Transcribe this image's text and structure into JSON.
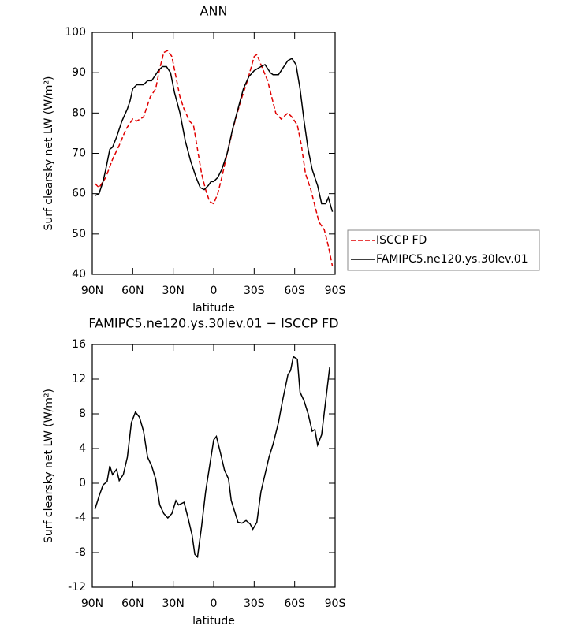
{
  "chart_data": [
    {
      "type": "line",
      "title": "ANN",
      "xlabel": "latitude",
      "ylabel": "Surf clearsky net LW (W/m²)",
      "xlim": [
        90,
        -90
      ],
      "xticks": [
        {
          "value": 90,
          "label": "90N"
        },
        {
          "value": 60,
          "label": "60N"
        },
        {
          "value": 30,
          "label": "30N"
        },
        0,
        {
          "value": -30,
          "label": "30S"
        },
        {
          "value": -60,
          "label": "60S"
        },
        {
          "value": -90,
          "label": "90S"
        }
      ],
      "ylim": [
        40,
        100
      ],
      "yticks": [
        40,
        50,
        60,
        70,
        80,
        90,
        100
      ],
      "legend": "right",
      "series": [
        {
          "name": "ISCCP FD",
          "color": "#e00000",
          "dashed": true,
          "x": [
            88,
            85,
            80,
            75,
            70,
            65,
            60,
            57,
            52,
            47,
            43,
            40,
            37,
            34,
            31,
            28,
            25,
            22,
            18,
            15,
            12,
            9,
            6,
            3,
            0,
            -3,
            -6,
            -10,
            -15,
            -20,
            -25,
            -30,
            -32,
            -35,
            -40,
            -43,
            -46,
            -50,
            -55,
            -58,
            -62,
            -65,
            -68,
            -72,
            -75,
            -78,
            -82,
            -85,
            -88
          ],
          "values": [
            62.5,
            61.5,
            64,
            68.5,
            72,
            76,
            78.5,
            78,
            79,
            84,
            86,
            91,
            95,
            95.5,
            94,
            89,
            84,
            81,
            78,
            77,
            71,
            65,
            61,
            58,
            57.5,
            60,
            64,
            70,
            77,
            83,
            88,
            94,
            94.5,
            92,
            88,
            84,
            80,
            78.5,
            80,
            79,
            77,
            72,
            65,
            61,
            57,
            53,
            51,
            47,
            42
          ]
        },
        {
          "name": "FAMIPC5.ne120.ys.30lev.01",
          "color": "#000000",
          "dashed": false,
          "x": [
            88,
            85,
            82,
            80,
            77,
            75,
            72,
            68,
            64,
            62,
            60,
            57,
            52,
            49,
            46,
            44,
            41,
            38,
            35,
            32,
            29,
            25,
            21,
            17,
            13,
            10,
            7,
            4,
            2,
            0,
            -3,
            -6,
            -10,
            -14,
            -18,
            -22,
            -26,
            -30,
            -35,
            -38,
            -42,
            -44,
            -48,
            -51,
            -55,
            -58,
            -61,
            -64,
            -67,
            -70,
            -73,
            -77,
            -80,
            -83,
            -85,
            -88
          ],
          "values": [
            59.5,
            60,
            63,
            66,
            71,
            71.5,
            74,
            78,
            81,
            83,
            86,
            87,
            87,
            88,
            88,
            89,
            90.5,
            91.5,
            91.5,
            90,
            85,
            80,
            73,
            68,
            64,
            61.5,
            61,
            62,
            63,
            63,
            64,
            66,
            70,
            76,
            81,
            86,
            89,
            90.5,
            91.5,
            92,
            90,
            89.5,
            89.5,
            91,
            93,
            93.5,
            92,
            86,
            78,
            71,
            66,
            62,
            57.5,
            57.5,
            59,
            55.5
          ]
        }
      ]
    },
    {
      "type": "line",
      "title": "FAMIPC5.ne120.ys.30lev.01 − ISCCP FD",
      "xlabel": "latitude",
      "ylabel": "Surf clearsky net LW (W/m²)",
      "xlim": [
        90,
        -90
      ],
      "xticks": [
        {
          "value": 90,
          "label": "90N"
        },
        {
          "value": 60,
          "label": "60N"
        },
        {
          "value": 30,
          "label": "30N"
        },
        0,
        {
          "value": -30,
          "label": "30S"
        },
        {
          "value": -60,
          "label": "60S"
        },
        {
          "value": -90,
          "label": "90S"
        }
      ],
      "ylim": [
        -12,
        16
      ],
      "yticks": [
        -12,
        -8,
        -4,
        0,
        4,
        8,
        12,
        16
      ],
      "series": [
        {
          "color": "#000000",
          "dashed": false,
          "x": [
            88,
            85,
            82,
            79,
            77,
            75,
            72,
            70,
            67,
            64,
            61,
            58,
            55,
            52,
            49,
            46,
            43,
            40,
            37,
            34,
            31,
            28,
            26,
            22,
            19,
            16,
            14,
            12,
            9,
            6,
            3,
            0,
            -2,
            -5,
            -8,
            -11,
            -13,
            -16,
            -18,
            -21,
            -24,
            -27,
            -29,
            -32,
            -35,
            -38,
            -41,
            -44,
            -48,
            -51,
            -55,
            -57,
            -59,
            -62,
            -64,
            -67,
            -70,
            -73,
            -75,
            -77,
            -80,
            -83,
            -86
          ],
          "values": [
            -3,
            -1.5,
            -0.2,
            0.2,
            2,
            1,
            1.6,
            0.3,
            1,
            3,
            7,
            8.2,
            7.6,
            6,
            3,
            2,
            0.5,
            -2.5,
            -3.5,
            -4,
            -3.5,
            -2,
            -2.5,
            -2.2,
            -4,
            -6,
            -8.2,
            -8.5,
            -5,
            -1,
            2,
            5,
            5.4,
            3.5,
            1.5,
            0.5,
            -2,
            -3.5,
            -4.5,
            -4.6,
            -4.3,
            -4.7,
            -5.3,
            -4.5,
            -1,
            1,
            3,
            4.5,
            7,
            9.5,
            12.5,
            13,
            14.6,
            14.3,
            10.5,
            9.5,
            8,
            6,
            6.2,
            4.4,
            5.6,
            9.5,
            13.4
          ]
        }
      ]
    }
  ]
}
